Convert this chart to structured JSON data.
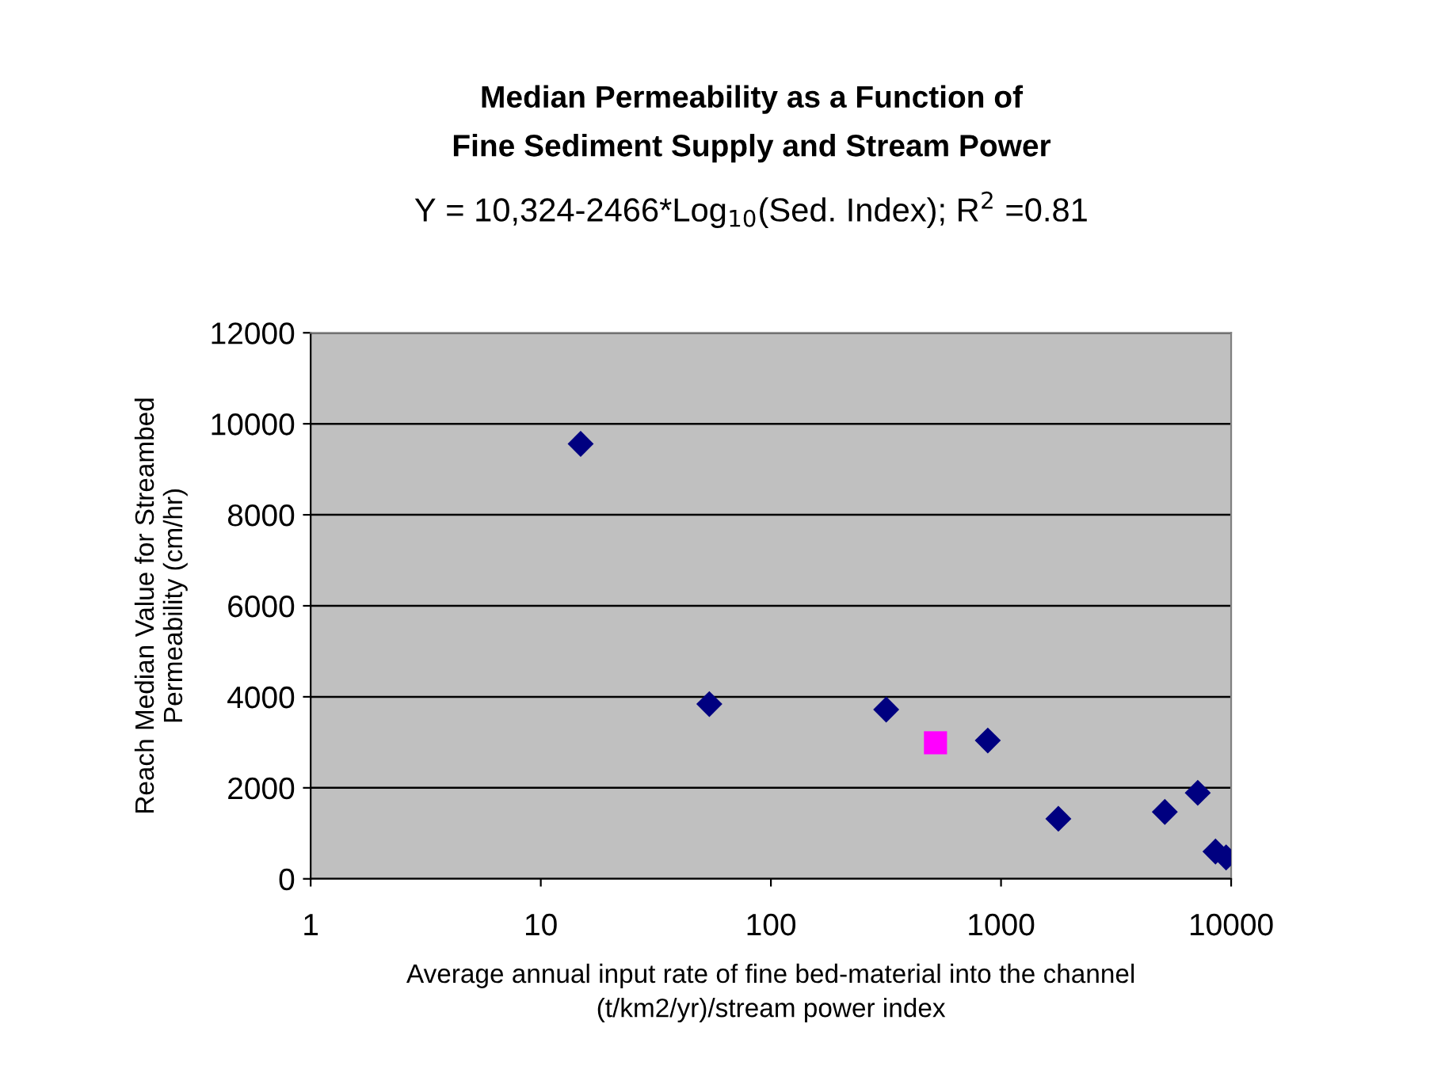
{
  "chart_data": {
    "type": "scatter",
    "title": "Median Permeability as a Function of\nFine Sediment Supply and Stream Power",
    "subtitle": "Y = 10,324-2466*Log$_{10}$(Sed. Index); R$^{2}$ =0.81",
    "xlabel": "Average annual input rate of fine bed-material into the channel\n(t/km2/yr)/stream power index",
    "ylabel": "Reach Median Value for Streambed\nPermeability (cm/hr)",
    "log": "x",
    "grid": "y",
    "xlim": [
      1,
      10000
    ],
    "xticks": [
      1,
      10,
      100,
      1000,
      10000
    ],
    "ylim": [
      0,
      12000
    ],
    "yticks": [
      0,
      2000,
      4000,
      6000,
      8000,
      10000,
      12000
    ],
    "series": [
      {
        "color": "#000080",
        "marker": "diamond",
        "x": [
          14.9,
          54,
          317,
          876,
          1775,
          5150,
          7160,
          8550,
          9510
        ],
        "values": [
          9560,
          3840,
          3720,
          3040,
          1320,
          1470,
          1890,
          600,
          470
        ]
      },
      {
        "color": "#ff00ff",
        "marker": "square",
        "x": [
          519
        ],
        "values": [
          2990
        ]
      }
    ]
  }
}
